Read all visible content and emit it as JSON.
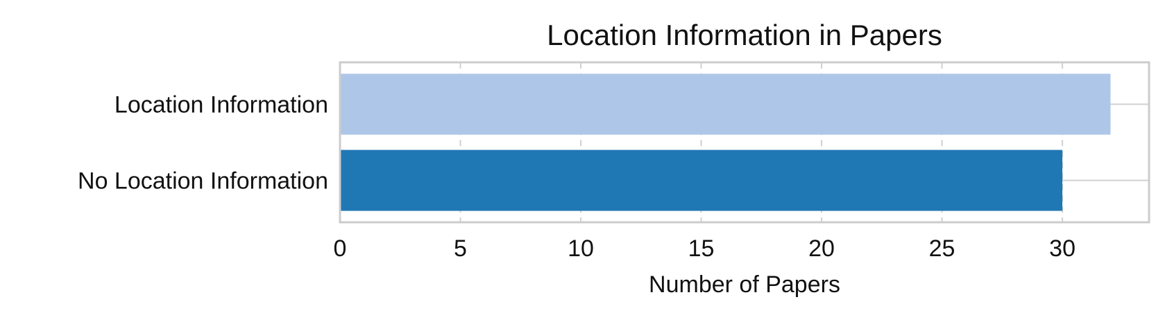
{
  "chart_data": {
    "type": "bar",
    "orientation": "horizontal",
    "title": "Location Information in Papers",
    "xlabel": "Number of Papers",
    "ylabel": "",
    "categories": [
      "Location Information",
      "No Location Information"
    ],
    "values": [
      32,
      30
    ],
    "colors": [
      "#aec7e8",
      "#1f77b4"
    ],
    "xlim": [
      0,
      33.6
    ],
    "xticks": [
      0,
      5,
      10,
      15,
      20,
      25,
      30
    ],
    "grid": true,
    "legend": "none"
  }
}
